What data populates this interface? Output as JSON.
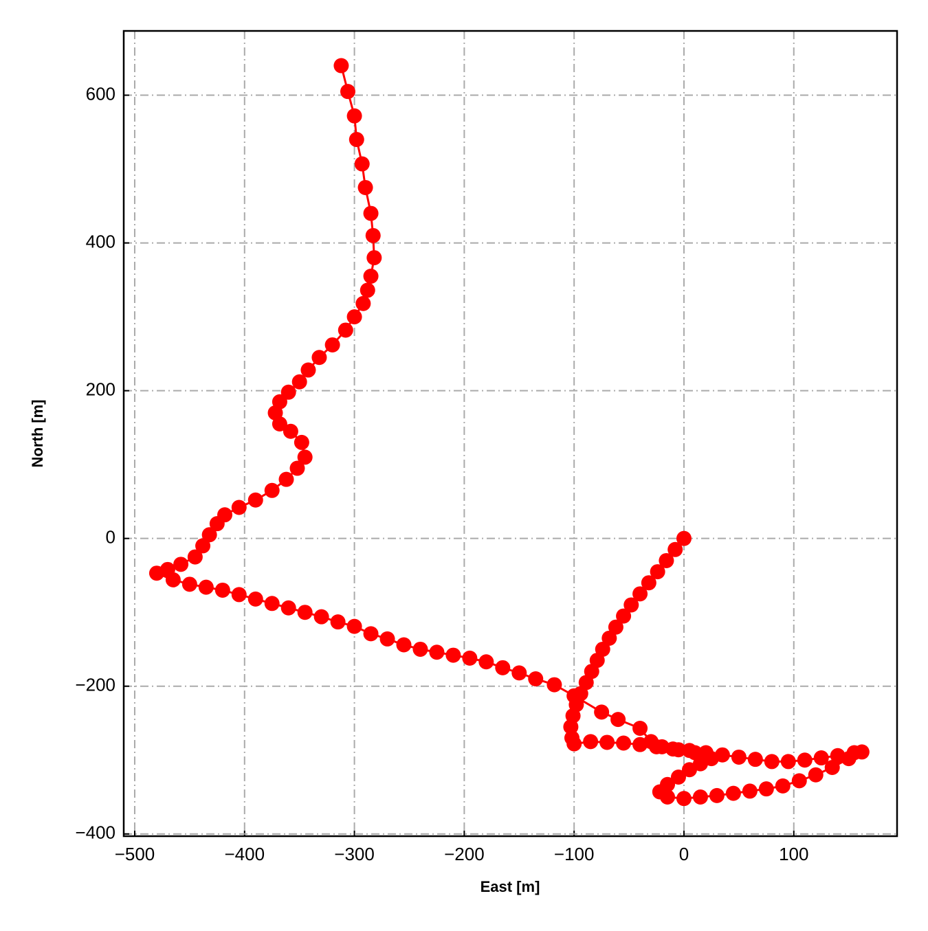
{
  "chart_data": {
    "type": "line",
    "xlabel": "East [m]",
    "ylabel": "North [m]",
    "color": "#ff0000",
    "grid": true,
    "xlim": [
      -510,
      194
    ],
    "ylim": [
      -403,
      687
    ],
    "xticks": [
      {
        "value": -500,
        "label": "−500"
      },
      {
        "value": -400,
        "label": "−400"
      },
      {
        "value": -300,
        "label": "−300"
      },
      {
        "value": -200,
        "label": "−200"
      },
      {
        "value": -100,
        "label": "−100"
      },
      0,
      100
    ],
    "yticks": [
      {
        "value": -400,
        "label": "−400"
      },
      {
        "value": -200,
        "label": "−200"
      },
      0,
      200,
      400,
      600
    ],
    "x": [
      0,
      -8,
      -16,
      -24,
      -32,
      -40,
      -48,
      -55,
      -62,
      -68,
      -74,
      -79,
      -84,
      -89,
      -94,
      -98,
      -101,
      -103,
      -102,
      -100,
      -85,
      -70,
      -55,
      -40,
      -25,
      -10,
      5,
      20,
      35,
      50,
      65,
      80,
      95,
      110,
      125,
      140,
      155,
      162,
      150,
      135,
      120,
      105,
      90,
      75,
      60,
      45,
      30,
      15,
      0,
      -15,
      -22,
      -15,
      -5,
      5,
      15,
      25,
      10,
      -5,
      -20,
      -30,
      -40,
      -60,
      -75,
      -100,
      -118,
      -135,
      -150,
      -165,
      -180,
      -195,
      -210,
      -225,
      -240,
      -255,
      -270,
      -285,
      -300,
      -315,
      -330,
      -345,
      -360,
      -375,
      -390,
      -405,
      -420,
      -435,
      -450,
      -465,
      -480,
      -470,
      -458,
      -445,
      -438,
      -432,
      -425,
      -418,
      -405,
      -390,
      -375,
      -362,
      -352,
      -345,
      -348,
      -358,
      -368,
      -372,
      -368,
      -360,
      -350,
      -342,
      -332,
      -320,
      -308,
      -300,
      -292,
      -288,
      -285,
      -282,
      -283,
      -285,
      -290,
      -293,
      -298,
      -300,
      -306,
      -312
    ],
    "values": [
      0,
      -15,
      -30,
      -45,
      -60,
      -75,
      -90,
      -105,
      -120,
      -135,
      -150,
      -165,
      -180,
      -195,
      -210,
      -225,
      -240,
      -255,
      -270,
      -278,
      -275,
      -276,
      -277,
      -279,
      -282,
      -285,
      -287,
      -290,
      -293,
      -296,
      -299,
      -302,
      -302,
      -300,
      -297,
      -294,
      -290,
      -289,
      -298,
      -310,
      -320,
      -328,
      -335,
      -339,
      -342,
      -345,
      -348,
      -350,
      -352,
      -350,
      -343,
      -333,
      -323,
      -313,
      -305,
      -298,
      -290,
      -286,
      -282,
      -275,
      -257,
      -245,
      -235,
      -213,
      -198,
      -190,
      -182,
      -175,
      -167,
      -162,
      -158,
      -154,
      -150,
      -144,
      -136,
      -129,
      -119,
      -113,
      -106,
      -100,
      -94,
      -88,
      -82,
      -76,
      -70,
      -66,
      -62,
      -56,
      -47,
      -42,
      -35,
      -25,
      -10,
      5,
      20,
      32,
      42,
      52,
      65,
      80,
      95,
      110,
      130,
      145,
      155,
      170,
      185,
      198,
      212,
      228,
      245,
      262,
      282,
      300,
      318,
      336,
      355,
      380,
      410,
      440,
      475,
      507,
      540,
      572,
      605,
      640
    ]
  }
}
